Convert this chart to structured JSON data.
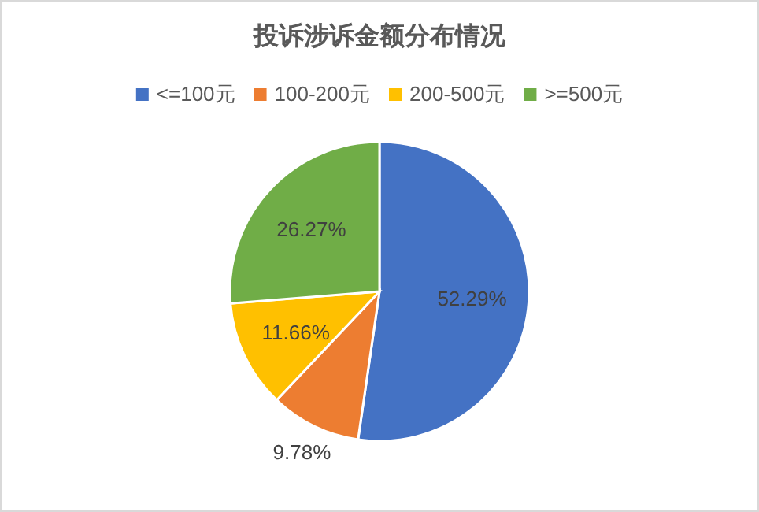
{
  "chart_data": {
    "type": "pie",
    "title": "投诉涉诉金额分布情况",
    "categories": [
      "<=100元",
      "100-200元",
      "200-500元",
      ">=500元"
    ],
    "values": [
      52.29,
      9.78,
      11.66,
      26.27
    ],
    "colors": [
      "#4472c4",
      "#ed7d31",
      "#ffc000",
      "#70ad47"
    ],
    "value_labels": [
      "52.29%",
      "9.78%",
      "11.66%",
      "26.27%"
    ],
    "legend": "top"
  }
}
